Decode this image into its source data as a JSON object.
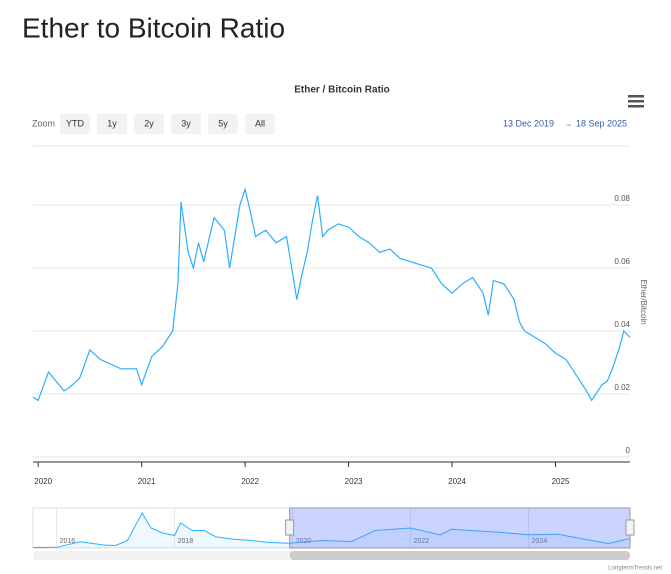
{
  "page_title": "Ether to Bitcoin Ratio",
  "footer": "LongtermTrends.net",
  "range_selector": {
    "label": "Zoom",
    "buttons": [
      "YTD",
      "1y",
      "2y",
      "3y",
      "5y",
      "All"
    ],
    "from": "13 Dec 2019",
    "arrow": "→",
    "to": "18 Sep 2025"
  },
  "chart_data": {
    "type": "line",
    "title": "Ether / Bitcoin Ratio",
    "y_axis_label": "Ether/Bitcoin",
    "color": "#2caffe",
    "x": [
      2019.95,
      2020.0,
      2020.1,
      2020.25,
      2020.3,
      2020.4,
      2020.5,
      2020.6,
      2020.8,
      2020.95,
      2021.0,
      2021.1,
      2021.2,
      2021.3,
      2021.35,
      2021.38,
      2021.45,
      2021.5,
      2021.55,
      2021.6,
      2021.7,
      2021.8,
      2021.85,
      2021.9,
      2021.95,
      2022.0,
      2022.05,
      2022.1,
      2022.2,
      2022.3,
      2022.4,
      2022.45,
      2022.5,
      2022.55,
      2022.6,
      2022.65,
      2022.7,
      2022.75,
      2022.8,
      2022.9,
      2023.0,
      2023.1,
      2023.2,
      2023.3,
      2023.4,
      2023.5,
      2023.6,
      2023.7,
      2023.8,
      2023.9,
      2024.0,
      2024.1,
      2024.2,
      2024.3,
      2024.35,
      2024.4,
      2024.5,
      2024.6,
      2024.65,
      2024.7,
      2024.8,
      2024.9,
      2025.0,
      2025.1,
      2025.2,
      2025.3,
      2025.35,
      2025.45,
      2025.5,
      2025.55,
      2025.62,
      2025.66,
      2025.72
    ],
    "values": [
      0.019,
      0.018,
      0.027,
      0.021,
      0.022,
      0.025,
      0.034,
      0.031,
      0.028,
      0.028,
      0.023,
      0.032,
      0.035,
      0.04,
      0.055,
      0.081,
      0.065,
      0.06,
      0.068,
      0.062,
      0.076,
      0.072,
      0.06,
      0.07,
      0.08,
      0.085,
      0.078,
      0.07,
      0.072,
      0.068,
      0.07,
      0.06,
      0.05,
      0.058,
      0.065,
      0.075,
      0.083,
      0.07,
      0.072,
      0.074,
      0.073,
      0.07,
      0.068,
      0.065,
      0.066,
      0.063,
      0.062,
      0.061,
      0.06,
      0.055,
      0.052,
      0.055,
      0.057,
      0.052,
      0.045,
      0.056,
      0.055,
      0.05,
      0.043,
      0.04,
      0.038,
      0.036,
      0.033,
      0.031,
      0.026,
      0.021,
      0.018,
      0.023,
      0.024,
      0.028,
      0.035,
      0.04,
      0.038
    ],
    "xlim": [
      2019.95,
      2025.72
    ],
    "xticks": [
      2020,
      2021,
      2022,
      2023,
      2024,
      2025
    ],
    "ylim": [
      0,
      0.1
    ],
    "yticks": [
      0,
      0.02,
      0.04,
      0.06,
      0.08
    ],
    "grid": true,
    "navigator": {
      "x": [
        2015.6,
        2016.0,
        2016.4,
        2016.8,
        2017.0,
        2017.2,
        2017.45,
        2017.6,
        2017.8,
        2018.0,
        2018.1,
        2018.3,
        2018.5,
        2018.7,
        2019.0,
        2019.3,
        2019.6,
        2019.95,
        2020.5,
        2021.0,
        2021.4,
        2022.0,
        2022.5,
        2022.7,
        2023.5,
        2024.0,
        2024.5,
        2025.0,
        2025.35,
        2025.72
      ],
      "values": [
        0.002,
        0.003,
        0.025,
        0.012,
        0.01,
        0.03,
        0.14,
        0.08,
        0.06,
        0.05,
        0.1,
        0.07,
        0.07,
        0.045,
        0.035,
        0.03,
        0.022,
        0.019,
        0.03,
        0.026,
        0.07,
        0.08,
        0.053,
        0.075,
        0.063,
        0.053,
        0.055,
        0.033,
        0.018,
        0.038
      ],
      "xlim": [
        2015.6,
        2025.72
      ],
      "ylim": [
        0,
        0.16
      ],
      "xticks": [
        2016,
        2018,
        2020,
        2022,
        2024
      ]
    }
  }
}
